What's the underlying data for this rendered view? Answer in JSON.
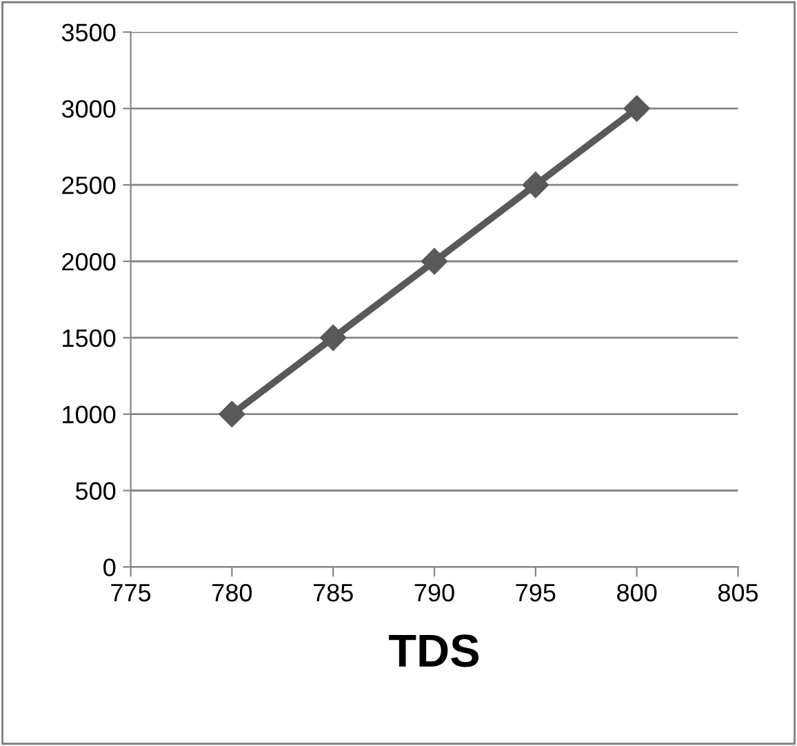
{
  "chart_data": {
    "type": "line",
    "xlabel": "TDS",
    "x": [
      780,
      785,
      790,
      795,
      800
    ],
    "series": [
      {
        "color": "#595959",
        "values": [
          1000,
          1500,
          2000,
          2500,
          3000
        ]
      }
    ],
    "xlim": [
      775,
      805
    ],
    "xticks": [
      775,
      780,
      785,
      790,
      795,
      800,
      805
    ],
    "ylim": [
      0,
      3500
    ],
    "yticks": [
      0,
      500,
      1000,
      1500,
      2000,
      2500,
      3000,
      3500
    ],
    "grid": "y",
    "marker": "diamond",
    "line_style": "solid"
  }
}
